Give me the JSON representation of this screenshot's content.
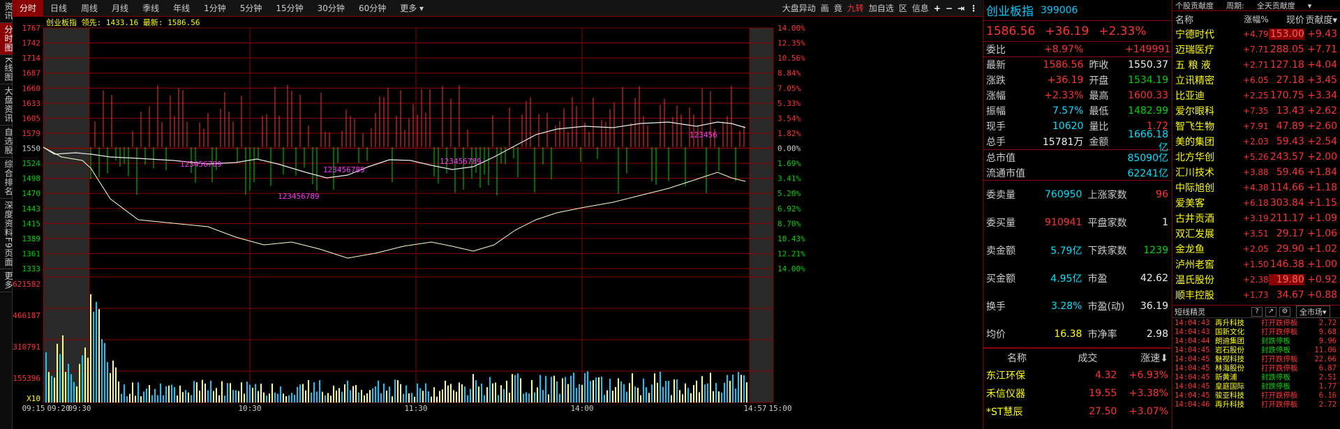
{
  "sidebar": {
    "items": [
      {
        "label": "资讯",
        "active": false
      },
      {
        "label": "分时图",
        "active": true
      },
      {
        "label": "K线图",
        "active": false
      },
      {
        "label": "大盘资讯",
        "active": false
      },
      {
        "label": "自选股",
        "active": false
      },
      {
        "label": "综合排名",
        "active": false
      },
      {
        "label": "深度资料F9页面",
        "active": false
      },
      {
        "label": "更多",
        "active": false
      }
    ]
  },
  "toolbar": {
    "tabs": [
      "分时",
      "日线",
      "周线",
      "月线",
      "季线",
      "年线",
      "1分钟",
      "5分钟",
      "15分钟",
      "30分钟",
      "60分钟",
      "更多"
    ],
    "active_tab": "分时",
    "right": [
      "大盘异动",
      "画",
      "竟",
      "九转",
      "加自选",
      "区",
      "信息"
    ]
  },
  "chart": {
    "title": "创业板指",
    "leader_label": "领先:",
    "leader_value": "1433.16",
    "latest_label": "最新:",
    "latest_value": "1586.56",
    "vol_scale": "X10",
    "price_axis": [
      "1767",
      "1742",
      "1714",
      "1687",
      "1660",
      "1633",
      "1605",
      "1579",
      "1550",
      "1524",
      "1498",
      "1470",
      "1443",
      "1415",
      "1389",
      "1361",
      "1333"
    ],
    "pct_axis": [
      "14.00%",
      "12.35%",
      "10.56%",
      "8.84%",
      "7.05%",
      "5.33%",
      "3.54%",
      "1.82%",
      "0.00%",
      "1.69%",
      "3.41%",
      "5.20%",
      "6.92%",
      "8.70%",
      "10.43%",
      "12.21%",
      "14.00%"
    ],
    "vol_axis": [
      "621582",
      "466187",
      "310791",
      "155396"
    ],
    "time_axis": [
      "09:15",
      "09:20",
      "09:30",
      "10:30",
      "11:30",
      "14:00",
      "14:57",
      "15:00"
    ],
    "nine_turn": [
      "123456789",
      "123456789",
      "123456789",
      "123456789",
      "123456"
    ]
  },
  "quote": {
    "name": "创业板指",
    "code": "399006",
    "price": "1586.56",
    "change": "+36.19",
    "change_pct": "+2.33%",
    "wei_label": "委比",
    "wei_pct": "+8.97%",
    "wei_diff": "+149991",
    "rows": [
      {
        "l1": "最新",
        "v1": "1586.56",
        "l2": "昨收",
        "v2": "1550.37",
        "c1": "red",
        "c2": "wht"
      },
      {
        "l1": "涨跌",
        "v1": "+36.19",
        "l2": "开盘",
        "v2": "1534.19",
        "c1": "red",
        "c2": "grn"
      },
      {
        "l1": "涨幅",
        "v1": "+2.33%",
        "l2": "最高",
        "v2": "1600.33",
        "c1": "red",
        "c2": "red"
      },
      {
        "l1": "振幅",
        "v1": "7.57%",
        "l2": "最低",
        "v2": "1482.99",
        "c1": "cyn",
        "c2": "grn"
      },
      {
        "l1": "现手",
        "v1": "10620",
        "l2": "量比",
        "v2": "1.72",
        "c1": "cyn",
        "c2": "red"
      },
      {
        "l1": "总手",
        "v1": "15781万",
        "l2": "金额",
        "v2": "1666.18亿",
        "c1": "wht",
        "c2": "cyn"
      }
    ],
    "mcap_label": "总市值",
    "mcap": "85090亿",
    "float_label": "流通市值",
    "float": "62241亿",
    "stats": [
      {
        "l1": "委卖量",
        "v1": "760950",
        "l2": "上涨家数",
        "v2": "96",
        "c1": "cyn",
        "c2": "red"
      },
      {
        "l1": "委买量",
        "v1": "910941",
        "l2": "平盘家数",
        "v2": "1",
        "c1": "red",
        "c2": "wht"
      },
      {
        "l1": "卖金额",
        "v1": "5.79亿",
        "l2": "下跌家数",
        "v2": "1239",
        "c1": "cyn",
        "c2": "grn"
      },
      {
        "l1": "买金额",
        "v1": "4.95亿",
        "l2": "市盈",
        "v2": "42.62",
        "c1": "cyn",
        "c2": "wht"
      },
      {
        "l1": "换手",
        "v1": "3.28%",
        "l2": "市盈(动)",
        "v2": "36.19",
        "c1": "cyn",
        "c2": "wht"
      },
      {
        "l1": "均价",
        "v1": "16.38",
        "l2": "市净率",
        "v2": "2.98",
        "c1": "yel",
        "c2": "wht"
      }
    ],
    "table_headers": [
      "名称",
      "成交",
      "涨速"
    ],
    "speed": [
      {
        "name": "东江环保",
        "price": "4.32",
        "pct": "+6.93%"
      },
      {
        "name": "禾信仪器",
        "price": "19.55",
        "pct": "+3.38%"
      },
      {
        "name": "*ST慧辰",
        "price": "27.50",
        "pct": "+3.07%"
      }
    ]
  },
  "contrib": {
    "title": "个股贡献度",
    "period_label": "周期:",
    "period_value": "全天贡献度",
    "headers": [
      "名称",
      "涨幅%",
      "现价",
      "贡献度"
    ],
    "rows": [
      {
        "name": "宁德时代",
        "pct": "+4.79",
        "price": "153.00",
        "g": "+9.43",
        "hl": true
      },
      {
        "name": "迈瑞医疗",
        "pct": "+7.71",
        "price": "288.05",
        "g": "+7.71",
        "hl": false
      },
      {
        "name": "五 粮 液",
        "pct": "+2.71",
        "price": "127.18",
        "g": "+4.04",
        "hl": false
      },
      {
        "name": "立讯精密",
        "pct": "+6.05",
        "price": "27.18",
        "g": "+3.45",
        "hl": false
      },
      {
        "name": "比亚迪",
        "pct": "+2.25",
        "price": "170.75",
        "g": "+3.34",
        "hl": false
      },
      {
        "name": "爱尔眼科",
        "pct": "+7.35",
        "price": "13.43",
        "g": "+2.62",
        "hl": false
      },
      {
        "name": "智飞生物",
        "pct": "+7.91",
        "price": "47.89",
        "g": "+2.60",
        "hl": false
      },
      {
        "name": "美的集团",
        "pct": "+2.03",
        "price": "59.43",
        "g": "+2.54",
        "hl": false
      },
      {
        "name": "北方华创",
        "pct": "+5.26",
        "price": "243.57",
        "g": "+2.00",
        "hl": false
      },
      {
        "name": "汇川技术",
        "pct": "+3.88",
        "price": "59.46",
        "g": "+1.84",
        "hl": false
      },
      {
        "name": "中际旭创",
        "pct": "+4.38",
        "price": "114.66",
        "g": "+1.18",
        "hl": false
      },
      {
        "name": "爱美客",
        "pct": "+6.18",
        "price": "303.84",
        "g": "+1.15",
        "hl": false
      },
      {
        "name": "古井贡酒",
        "pct": "+3.19",
        "price": "211.17",
        "g": "+1.09",
        "hl": false
      },
      {
        "name": "双汇发展",
        "pct": "+3.51",
        "price": "29.17",
        "g": "+1.06",
        "hl": false
      },
      {
        "name": "金龙鱼",
        "pct": "+2.05",
        "price": "29.90",
        "g": "+1.02",
        "hl": false
      },
      {
        "name": "泸州老窖",
        "pct": "+1.50",
        "price": "146.38",
        "g": "+1.00",
        "hl": false
      },
      {
        "name": "温氏股份",
        "pct": "+2.38",
        "price": "19.80",
        "g": "+0.92",
        "hl": true
      },
      {
        "name": "顺丰控股",
        "pct": "+1.73",
        "price": "34.67",
        "g": "+0.88",
        "hl": false
      }
    ]
  },
  "short": {
    "title": "短线精灵",
    "btns": [
      "?",
      "↗",
      "⚙"
    ],
    "scope": "全市场",
    "rows": [
      {
        "t": "14:04:43",
        "n": "再升科技",
        "e": "打开跌停板",
        "v": "2.72",
        "nc": "red",
        "ec": "red"
      },
      {
        "t": "14:04:43",
        "n": "国新文化",
        "e": "打开跌停板",
        "v": "9.68",
        "nc": "red",
        "ec": "red"
      },
      {
        "t": "14:04:44",
        "n": "朗迪集团",
        "e": "封跌停板",
        "v": "9.96",
        "nc": "grn",
        "ec": "grn"
      },
      {
        "t": "14:04:45",
        "n": "岩石股份",
        "e": "封跌停板",
        "v": "11.06",
        "nc": "grn",
        "ec": "grn"
      },
      {
        "t": "14:04:45",
        "n": "魅视科技",
        "e": "打开跌停板",
        "v": "22.66",
        "nc": "red",
        "ec": "red"
      },
      {
        "t": "14:04:45",
        "n": "林海股份",
        "e": "打开跌停板",
        "v": "6.87",
        "nc": "red",
        "ec": "red"
      },
      {
        "t": "14:04:45",
        "n": "新黄浦",
        "e": "封跌停板",
        "v": "2.51",
        "nc": "grn",
        "ec": "grn"
      },
      {
        "t": "14:04:45",
        "n": "皇庭国际",
        "e": "封跌停板",
        "v": "1.77",
        "nc": "grn",
        "ec": "grn"
      },
      {
        "t": "14:04:45",
        "n": "骏亚科技",
        "e": "打开跌停板",
        "v": "6.16",
        "nc": "red",
        "ec": "red"
      },
      {
        "t": "14:04:46",
        "n": "再升科技",
        "e": "打开跌停板",
        "v": "2.72",
        "nc": "red",
        "ec": "red"
      }
    ]
  }
}
